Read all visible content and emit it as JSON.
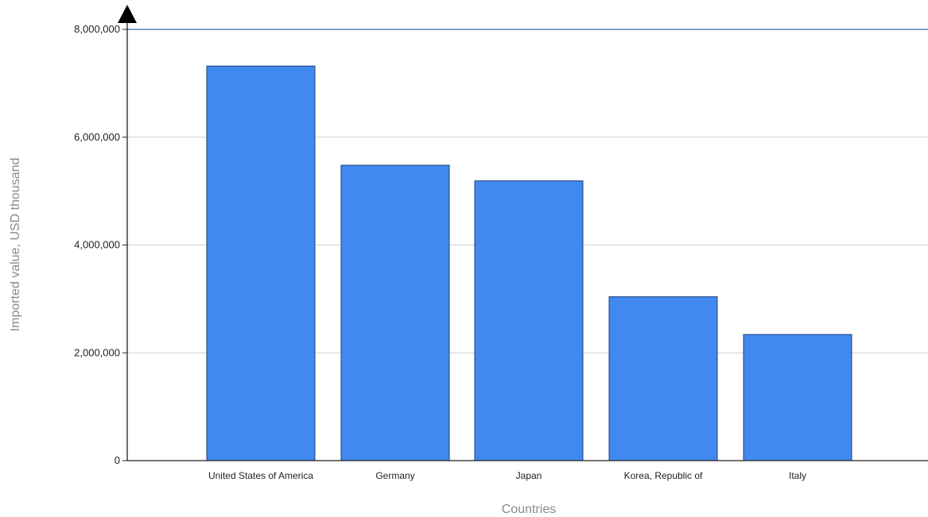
{
  "chart_data": {
    "type": "bar",
    "title": "",
    "xlabel": "Countries",
    "ylabel": "Imported value, USD thousand",
    "categories": [
      "United States of America",
      "Germany",
      "Japan",
      "Korea, Republic of",
      "Italy"
    ],
    "values": [
      7320000,
      5480000,
      5190000,
      3040000,
      2340000
    ],
    "ylim": [
      0,
      8000000
    ],
    "yticks": [
      0,
      2000000,
      4000000,
      6000000,
      8000000
    ],
    "ytick_labels": [
      "0",
      "2,000,000",
      "4,000,000",
      "6,000,000",
      "8,000,000"
    ],
    "grid": true,
    "legend": "none"
  },
  "colors": {
    "bar_fill": "#4189ee",
    "bar_stroke": "#1f3f78",
    "gridline": "#cfcfcf",
    "top_gridline": "#3a6d9a",
    "axis": "#222222"
  }
}
